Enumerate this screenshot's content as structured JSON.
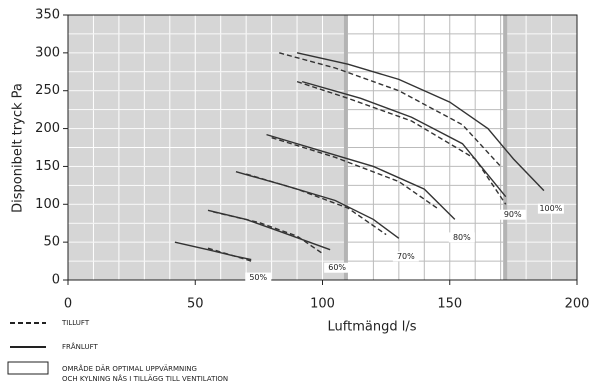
{
  "chart_data": {
    "type": "line",
    "xlabel": "Luftmängd l/s",
    "ylabel": "Disponibelt tryck Pa",
    "xlim": [
      0,
      200
    ],
    "xticks": [
      0,
      50,
      100,
      150,
      200
    ],
    "ylim": [
      0,
      350
    ],
    "yticks": [
      0,
      50,
      100,
      150,
      200,
      250,
      300,
      350
    ],
    "grid": true,
    "color": "#333333",
    "region_color": "#d6d6d6",
    "optimal_range": [
      110,
      171
    ],
    "legend": [
      {
        "label": "TILLUFT",
        "style": "dashed"
      },
      {
        "label": "FRÅNLUFT",
        "style": "solid"
      }
    ],
    "region_label": [
      "OMRÅDE DÄR OPTIMAL UPPVÄRMNING",
      "OCH KYLNING NÅS I TILLÄGG TILL VENTILATION"
    ],
    "curves": [
      {
        "label": "50%",
        "supply": {
          "x": [
            55,
            64,
            72
          ],
          "y": [
            42,
            33,
            25
          ]
        },
        "exhaust": {
          "x": [
            42,
            55,
            65,
            72
          ],
          "y": [
            50,
            40,
            32,
            27
          ]
        }
      },
      {
        "label": "60%",
        "supply": {
          "x": [
            57,
            75,
            90,
            100
          ],
          "y": [
            90,
            76,
            58,
            35
          ]
        },
        "exhaust": {
          "x": [
            55,
            70,
            85,
            103
          ],
          "y": [
            92,
            80,
            62,
            40
          ]
        }
      },
      {
        "label": "70%",
        "supply": {
          "x": [
            70,
            90,
            110,
            125
          ],
          "y": [
            140,
            120,
            95,
            60
          ]
        },
        "exhaust": {
          "x": [
            66,
            85,
            105,
            120,
            130
          ],
          "y": [
            143,
            125,
            105,
            80,
            55
          ]
        }
      },
      {
        "label": "80%",
        "supply": {
          "x": [
            80,
            105,
            130,
            145
          ],
          "y": [
            188,
            162,
            130,
            95
          ]
        },
        "exhaust": {
          "x": [
            78,
            100,
            120,
            140,
            152
          ],
          "y": [
            192,
            170,
            150,
            120,
            80
          ]
        }
      },
      {
        "label": "90%",
        "supply": {
          "x": [
            90,
            110,
            135,
            160,
            172
          ],
          "y": [
            262,
            240,
            210,
            160,
            100
          ]
        },
        "exhaust": {
          "x": [
            92,
            115,
            135,
            155,
            172
          ],
          "y": [
            262,
            240,
            215,
            180,
            110
          ]
        }
      },
      {
        "label": "100%",
        "supply": {
          "x": [
            83,
            105,
            130,
            155,
            170
          ],
          "y": [
            300,
            280,
            250,
            205,
            150
          ]
        },
        "exhaust": {
          "x": [
            90,
            110,
            130,
            150,
            165,
            175,
            187
          ],
          "y": [
            300,
            285,
            265,
            235,
            200,
            160,
            118
          ]
        }
      }
    ]
  }
}
